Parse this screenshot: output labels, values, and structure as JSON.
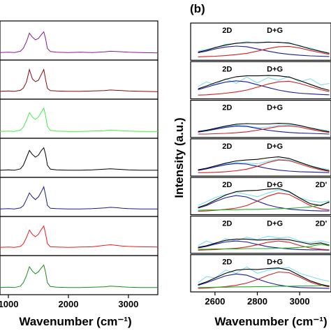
{
  "chart_data": [
    {
      "type": "line",
      "xlabel": "Wavenumber (cm⁻¹)",
      "xlim": [
        860,
        3490
      ],
      "xticks": [
        1000,
        2000,
        3000
      ],
      "ylim": [
        0,
        1
      ],
      "x": [
        860,
        1000,
        1100,
        1200,
        1250,
        1300,
        1350,
        1400,
        1450,
        1500,
        1550,
        1590,
        1620,
        1650,
        1700,
        1800,
        2000,
        2200,
        2400,
        2600,
        2700,
        2800,
        2900,
        3000,
        3200,
        3490
      ],
      "series": [
        {
          "color": "#8b1a8b",
          "values": [
            0.14,
            0.15,
            0.14,
            0.18,
            0.27,
            0.46,
            0.72,
            0.6,
            0.52,
            0.56,
            0.68,
            0.76,
            0.55,
            0.26,
            0.17,
            0.15,
            0.14,
            0.15,
            0.14,
            0.16,
            0.18,
            0.17,
            0.16,
            0.15,
            0.14,
            0.13
          ]
        },
        {
          "color": "#8b0a0a",
          "values": [
            0.15,
            0.16,
            0.15,
            0.18,
            0.25,
            0.42,
            0.8,
            0.52,
            0.44,
            0.48,
            0.66,
            0.8,
            0.5,
            0.24,
            0.17,
            0.16,
            0.15,
            0.15,
            0.16,
            0.17,
            0.19,
            0.18,
            0.17,
            0.16,
            0.15,
            0.14
          ]
        },
        {
          "color": "#44ee44",
          "values": [
            0.12,
            0.13,
            0.12,
            0.16,
            0.25,
            0.45,
            0.68,
            0.55,
            0.48,
            0.55,
            0.7,
            0.82,
            0.58,
            0.27,
            0.15,
            0.13,
            0.12,
            0.12,
            0.13,
            0.14,
            0.16,
            0.15,
            0.14,
            0.13,
            0.12,
            0.12
          ]
        },
        {
          "color": "#000000",
          "values": [
            0.13,
            0.14,
            0.13,
            0.17,
            0.28,
            0.5,
            0.72,
            0.6,
            0.52,
            0.58,
            0.72,
            0.8,
            0.6,
            0.28,
            0.16,
            0.14,
            0.13,
            0.13,
            0.14,
            0.16,
            0.17,
            0.16,
            0.15,
            0.14,
            0.13,
            0.13
          ]
        },
        {
          "color": "#1a1a8b",
          "values": [
            0.14,
            0.15,
            0.14,
            0.17,
            0.24,
            0.42,
            0.62,
            0.5,
            0.42,
            0.5,
            0.66,
            0.8,
            0.55,
            0.25,
            0.16,
            0.15,
            0.14,
            0.14,
            0.15,
            0.17,
            0.19,
            0.18,
            0.16,
            0.15,
            0.14,
            0.14
          ]
        },
        {
          "color": "#ee1c1c",
          "values": [
            0.16,
            0.17,
            0.16,
            0.19,
            0.27,
            0.45,
            0.68,
            0.55,
            0.48,
            0.55,
            0.7,
            0.8,
            0.56,
            0.27,
            0.18,
            0.17,
            0.16,
            0.17,
            0.18,
            0.22,
            0.24,
            0.22,
            0.2,
            0.19,
            0.18,
            0.17
          ]
        },
        {
          "color": "#1a8b1a",
          "values": [
            0.13,
            0.14,
            0.13,
            0.17,
            0.28,
            0.48,
            0.75,
            0.62,
            0.54,
            0.6,
            0.72,
            0.8,
            0.58,
            0.27,
            0.16,
            0.14,
            0.13,
            0.13,
            0.14,
            0.15,
            0.17,
            0.16,
            0.15,
            0.14,
            0.13,
            0.13
          ]
        }
      ]
    },
    {
      "type": "line",
      "label": "(b)",
      "ylabel": "Intensity (a.u.)",
      "xlabel": "Wavenumber (cm⁻¹)",
      "xlim": [
        2485,
        3148
      ],
      "xticks": [
        2600,
        2800,
        3000
      ],
      "ylim": [
        0,
        1
      ],
      "x": [
        2520,
        2560,
        2600,
        2650,
        2700,
        2750,
        2800,
        2850,
        2900,
        2950,
        3000,
        3050,
        3100,
        3140
      ],
      "panels": [
        {
          "annotations": [
            "2D",
            "D+G"
          ],
          "series": [
            {
              "color": "#7fdfef",
              "values": [
                0.2,
                0.26,
                0.3,
                0.42,
                0.44,
                0.5,
                0.45,
                0.5,
                0.46,
                0.48,
                0.35,
                0.3,
                0.2,
                0.14
              ]
            },
            {
              "color": "#1a1aa0",
              "values": [
                0.15,
                0.2,
                0.27,
                0.33,
                0.36,
                0.34,
                0.27,
                0.2,
                0.14,
                0.1,
                0.07,
                0.05,
                0.04,
                0.03
              ]
            },
            {
              "color": "#d02020",
              "values": [
                0.02,
                0.03,
                0.04,
                0.06,
                0.09,
                0.13,
                0.2,
                0.28,
                0.34,
                0.35,
                0.3,
                0.22,
                0.15,
                0.1
              ]
            },
            {
              "color": "#000000",
              "values": [
                0.17,
                0.23,
                0.31,
                0.39,
                0.45,
                0.47,
                0.47,
                0.48,
                0.48,
                0.45,
                0.37,
                0.27,
                0.19,
                0.13
              ]
            }
          ]
        },
        {
          "annotations": [
            "2D",
            "D+G"
          ],
          "series": [
            {
              "color": "#7fdfef",
              "values": [
                0.3,
                0.45,
                0.35,
                0.55,
                0.4,
                0.6,
                0.42,
                0.58,
                0.5,
                0.62,
                0.45,
                0.55,
                0.35,
                0.4
              ]
            },
            {
              "color": "#1a1aa0",
              "values": [
                0.2,
                0.28,
                0.36,
                0.44,
                0.48,
                0.45,
                0.36,
                0.27,
                0.19,
                0.13,
                0.09,
                0.07,
                0.05,
                0.04
              ]
            },
            {
              "color": "#d02020",
              "values": [
                0.03,
                0.04,
                0.06,
                0.09,
                0.13,
                0.19,
                0.28,
                0.38,
                0.45,
                0.47,
                0.4,
                0.3,
                0.2,
                0.14
              ]
            },
            {
              "color": "#000000",
              "values": [
                0.23,
                0.32,
                0.42,
                0.53,
                0.61,
                0.64,
                0.64,
                0.65,
                0.64,
                0.6,
                0.49,
                0.37,
                0.25,
                0.18
              ]
            }
          ]
        },
        {
          "annotations": [
            "2D",
            "D+G"
          ],
          "series": [
            {
              "color": "#7fdfef",
              "values": [
                0.1,
                0.15,
                0.18,
                0.25,
                0.3,
                0.28,
                0.22,
                0.24,
                0.3,
                0.32,
                0.28,
                0.22,
                0.16,
                0.12
              ]
            },
            {
              "color": "#1a1aa0",
              "values": [
                0.08,
                0.12,
                0.17,
                0.23,
                0.27,
                0.26,
                0.2,
                0.14,
                0.1,
                0.07,
                0.05,
                0.04,
                0.03,
                0.02
              ]
            },
            {
              "color": "#d02020",
              "values": [
                0.02,
                0.02,
                0.03,
                0.04,
                0.06,
                0.09,
                0.14,
                0.2,
                0.26,
                0.28,
                0.24,
                0.17,
                0.11,
                0.07
              ]
            },
            {
              "color": "#000000",
              "values": [
                0.1,
                0.14,
                0.2,
                0.27,
                0.33,
                0.35,
                0.34,
                0.34,
                0.36,
                0.35,
                0.29,
                0.21,
                0.14,
                0.09
              ]
            }
          ]
        },
        {
          "annotations": [
            "2D",
            "D+G"
          ],
          "series": [
            {
              "color": "#7fdfef",
              "values": [
                0.1,
                0.16,
                0.22,
                0.3,
                0.34,
                0.32,
                0.3,
                0.38,
                0.45,
                0.42,
                0.34,
                0.24,
                0.16,
                0.12
              ]
            },
            {
              "color": "#1a1aa0",
              "values": [
                0.09,
                0.14,
                0.2,
                0.27,
                0.31,
                0.29,
                0.22,
                0.15,
                0.1,
                0.07,
                0.05,
                0.04,
                0.03,
                0.02
              ]
            },
            {
              "color": "#d02020",
              "values": [
                0.02,
                0.02,
                0.03,
                0.05,
                0.08,
                0.13,
                0.22,
                0.34,
                0.42,
                0.4,
                0.3,
                0.19,
                0.11,
                0.06
              ]
            },
            {
              "color": "#000000",
              "values": [
                0.11,
                0.16,
                0.23,
                0.32,
                0.39,
                0.42,
                0.44,
                0.49,
                0.52,
                0.47,
                0.35,
                0.23,
                0.14,
                0.08
              ]
            }
          ]
        },
        {
          "annotations": [
            "2D",
            "D+G",
            "2D'"
          ],
          "series": [
            {
              "color": "#7fdfef",
              "values": [
                0.2,
                0.32,
                0.45,
                0.55,
                0.62,
                0.55,
                0.48,
                0.6,
                0.7,
                0.62,
                0.45,
                0.35,
                0.3,
                0.35
              ]
            },
            {
              "color": "#1a1aa0",
              "values": [
                0.12,
                0.2,
                0.32,
                0.45,
                0.52,
                0.47,
                0.34,
                0.22,
                0.14,
                0.09,
                0.06,
                0.04,
                0.03,
                0.03
              ]
            },
            {
              "color": "#d02020",
              "values": [
                0.02,
                0.03,
                0.05,
                0.08,
                0.12,
                0.2,
                0.34,
                0.5,
                0.6,
                0.55,
                0.38,
                0.2,
                0.1,
                0.06
              ]
            },
            {
              "color": "#22b022",
              "values": [
                0.05,
                0.06,
                0.06,
                0.07,
                0.07,
                0.08,
                0.08,
                0.09,
                0.1,
                0.11,
                0.13,
                0.16,
                0.22,
                0.3
              ]
            },
            {
              "color": "#000000",
              "values": [
                0.14,
                0.23,
                0.37,
                0.53,
                0.64,
                0.67,
                0.68,
                0.72,
                0.74,
                0.64,
                0.44,
                0.26,
                0.2,
                0.32
              ]
            }
          ]
        },
        {
          "annotations": [
            "2D",
            "D+G",
            "2D'"
          ],
          "series": [
            {
              "color": "#7fdfef",
              "values": [
                0.15,
                0.3,
                0.2,
                0.38,
                0.3,
                0.42,
                0.35,
                0.45,
                0.4,
                0.42,
                0.3,
                0.25,
                0.3,
                0.25
              ]
            },
            {
              "color": "#1a1aa0",
              "values": [
                0.08,
                0.13,
                0.2,
                0.27,
                0.3,
                0.27,
                0.19,
                0.12,
                0.08,
                0.05,
                0.03,
                0.02,
                0.02,
                0.01
              ]
            },
            {
              "color": "#d02020",
              "values": [
                0.01,
                0.02,
                0.03,
                0.05,
                0.07,
                0.11,
                0.18,
                0.26,
                0.3,
                0.26,
                0.16,
                0.08,
                0.04,
                0.02
              ]
            },
            {
              "color": "#22b022",
              "values": [
                0.04,
                0.04,
                0.05,
                0.05,
                0.05,
                0.06,
                0.06,
                0.06,
                0.07,
                0.08,
                0.1,
                0.13,
                0.2,
                0.15
              ]
            },
            {
              "color": "#000000",
              "values": [
                0.1,
                0.15,
                0.23,
                0.32,
                0.36,
                0.36,
                0.33,
                0.34,
                0.36,
                0.34,
                0.27,
                0.2,
                0.24,
                0.17
              ]
            }
          ]
        },
        {
          "annotations": [
            "2D",
            "D+G"
          ],
          "series": [
            {
              "color": "#7fdfef",
              "values": [
                0.2,
                0.4,
                0.35,
                0.6,
                0.5,
                0.7,
                0.5,
                0.6,
                0.65,
                0.68,
                0.5,
                0.4,
                0.3,
                0.25
              ]
            },
            {
              "color": "#1a1aa0",
              "values": [
                0.12,
                0.2,
                0.3,
                0.42,
                0.48,
                0.44,
                0.32,
                0.21,
                0.13,
                0.08,
                0.05,
                0.04,
                0.03,
                0.02
              ]
            },
            {
              "color": "#d02020",
              "values": [
                0.02,
                0.03,
                0.05,
                0.08,
                0.12,
                0.19,
                0.3,
                0.44,
                0.54,
                0.52,
                0.38,
                0.22,
                0.12,
                0.07
              ]
            },
            {
              "color": "#22b022",
              "values": [
                0.05,
                0.05,
                0.06,
                0.06,
                0.07,
                0.07,
                0.08,
                0.08,
                0.09,
                0.09,
                0.1,
                0.1,
                0.11,
                0.11
              ]
            },
            {
              "color": "#000000",
              "values": [
                0.14,
                0.23,
                0.35,
                0.5,
                0.6,
                0.63,
                0.62,
                0.65,
                0.67,
                0.6,
                0.43,
                0.26,
                0.15,
                0.09
              ]
            }
          ]
        }
      ]
    }
  ]
}
